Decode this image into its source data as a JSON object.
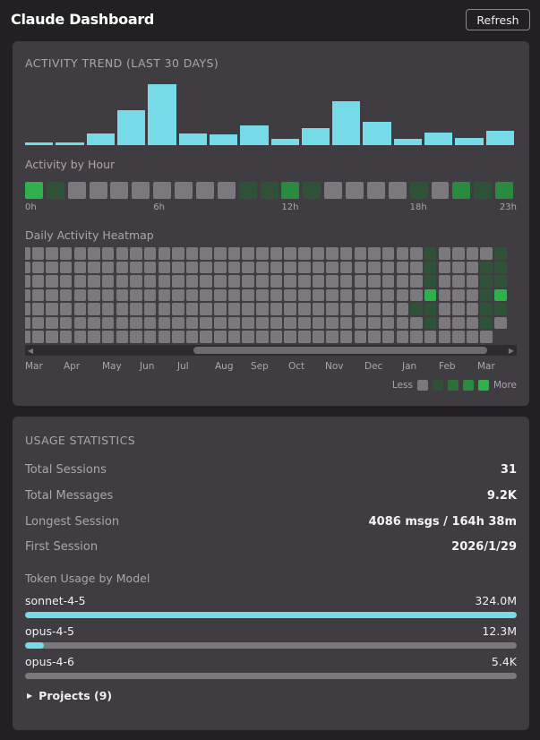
{
  "header": {
    "title": "Claude Dashboard",
    "refresh_label": "Refresh"
  },
  "activity": {
    "trend_title": "ACTIVITY TREND (LAST 30 DAYS)",
    "trend_values": [
      4,
      5,
      19,
      57,
      100,
      19,
      17,
      33,
      10,
      28,
      72,
      38,
      11,
      21,
      12,
      24
    ],
    "hour_title": "Activity by Hour",
    "hour_levels": [
      3,
      1,
      0,
      0,
      0,
      0,
      0,
      0,
      0,
      0,
      1,
      1,
      2,
      1,
      0,
      0,
      0,
      0,
      1,
      0,
      2,
      1,
      2
    ],
    "hour_ticks": [
      "0h",
      "6h",
      "12h",
      "18h",
      "23h"
    ],
    "heatmap_title": "Daily Activity Heatmap",
    "months": [
      "Mar",
      "Apr",
      "May",
      "Jun",
      "Jul",
      "Aug",
      "Sep",
      "Oct",
      "Nov",
      "Dec",
      "Jan",
      "Feb",
      "Mar"
    ],
    "legend_less": "Less",
    "legend_more": "More"
  },
  "usage": {
    "title": "USAGE STATISTICS",
    "stats": [
      {
        "label": "Total Sessions",
        "value": "31"
      },
      {
        "label": "Total Messages",
        "value": "9.2K"
      },
      {
        "label": "Longest Session",
        "value": "4086 msgs / 164h 38m"
      },
      {
        "label": "First Session",
        "value": "2026/1/29"
      }
    ],
    "token_title": "Token Usage by Model",
    "models": [
      {
        "name": "sonnet-4-5",
        "value": "324.0M",
        "fraction": 1.0
      },
      {
        "name": "opus-4-5",
        "value": "12.3M",
        "fraction": 0.038
      },
      {
        "name": "opus-4-6",
        "value": "5.4K",
        "fraction": 0.0
      }
    ],
    "projects_label": "Projects (9)"
  },
  "colors": {
    "accent": "#76dae8",
    "empty": "#7b797e",
    "level1": "#2f5238",
    "level2": "#2a8a40",
    "level3": "#2fb04c"
  }
}
